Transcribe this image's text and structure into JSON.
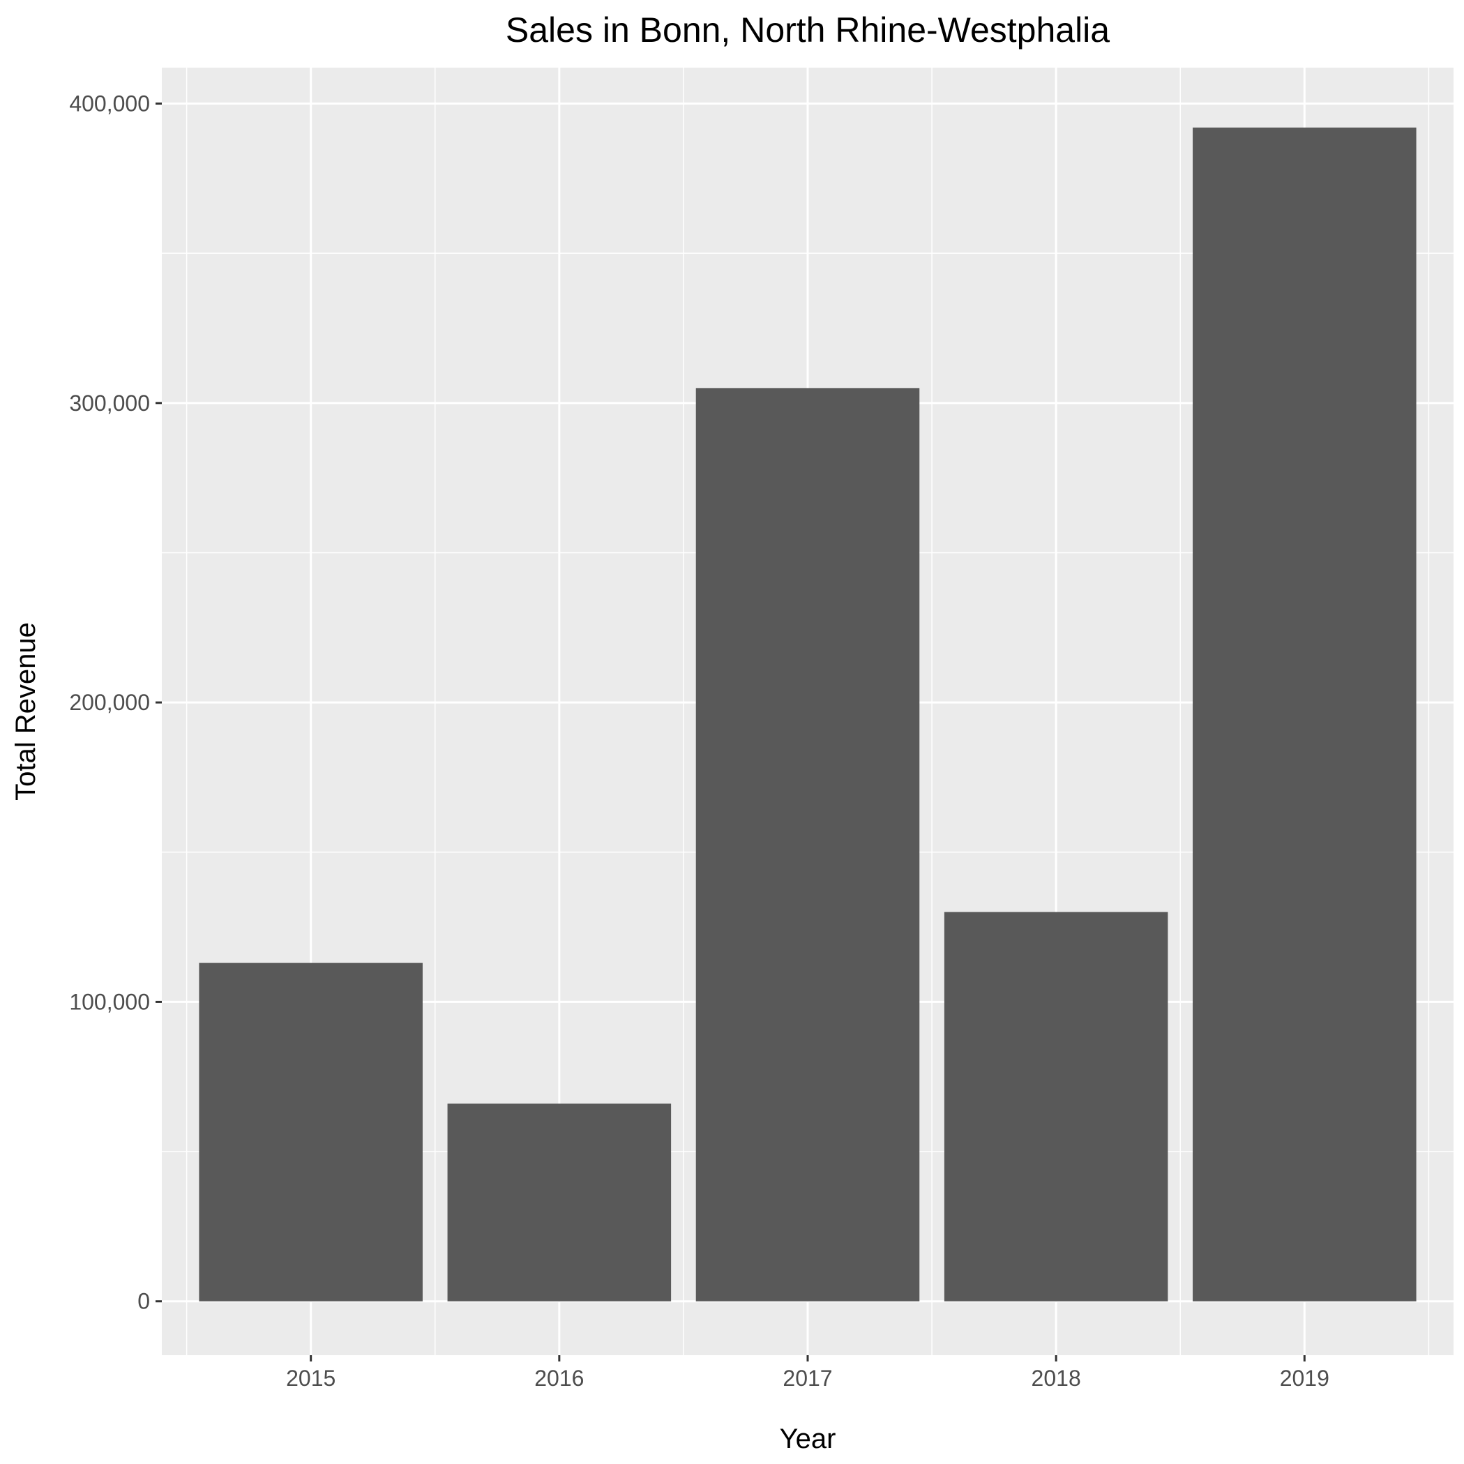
{
  "chart_data": {
    "type": "bar",
    "title": "Sales in Bonn, North Rhine-Westphalia",
    "xlabel": "Year",
    "ylabel": "Total Revenue",
    "categories": [
      "2015",
      "2016",
      "2017",
      "2018",
      "2019"
    ],
    "values": [
      113000,
      66000,
      305000,
      130000,
      392000
    ],
    "ylim": [
      -18000,
      412000
    ],
    "yticks": [
      0,
      100000,
      200000,
      300000,
      400000
    ],
    "ytick_labels": [
      "0",
      "100,000",
      "200,000",
      "300,000",
      "400,000"
    ],
    "grid": true,
    "legend": "none",
    "colors": {
      "bar": "#595959",
      "panel": "#ebebeb",
      "grid": "#ffffff",
      "tick": "#333333"
    }
  }
}
